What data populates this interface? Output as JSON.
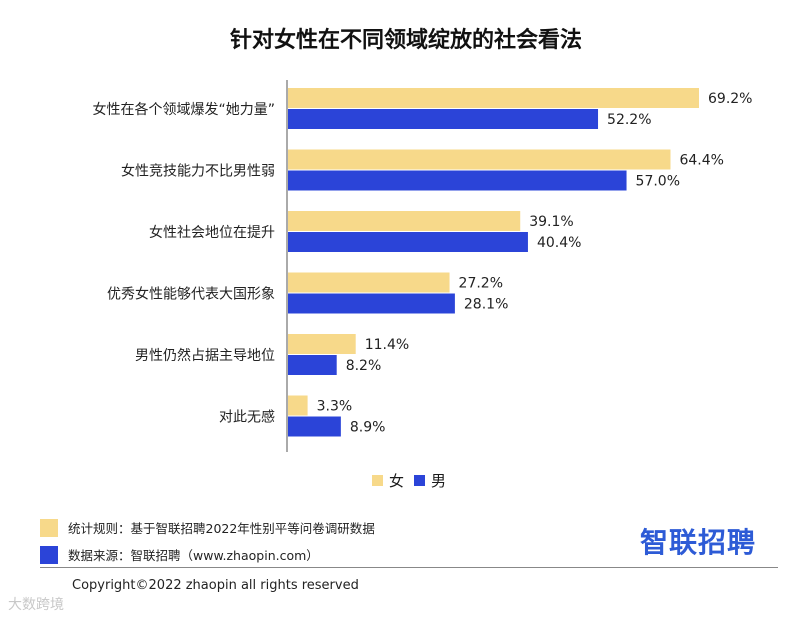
{
  "title": "针对女性在不同领域绽放的社会看法",
  "chart_data": {
    "type": "bar",
    "orientation": "horizontal",
    "categories": [
      "女性在各个领域爆发“她力量”",
      "女性竞技能力不比男性弱",
      "女性社会地位在提升",
      "优秀女性能够代表大国形象",
      "男性仍然占据主导地位",
      "对此无感"
    ],
    "series": [
      {
        "name": "女",
        "values": [
          69.2,
          64.4,
          39.1,
          27.2,
          11.4,
          3.3
        ],
        "color": "#f7d98a"
      },
      {
        "name": "男",
        "values": [
          52.2,
          57.0,
          40.4,
          28.1,
          8.2,
          8.9
        ],
        "color": "#2b44d8"
      }
    ],
    "value_labels": [
      [
        "69.2%",
        "64.4%",
        "39.1%",
        "27.2%",
        "11.4%",
        "3.3%"
      ],
      [
        "52.2%",
        "57.0%",
        "40.4%",
        "28.1%",
        "8.2%",
        "8.9%"
      ]
    ],
    "xlim": [
      0,
      72
    ],
    "legend_position": "bottom-center",
    "grid": false
  },
  "legend": {
    "female": "女",
    "male": "男"
  },
  "notes": {
    "rule": "统计规则：基于智联招聘2022年性别平等问卷调研数据",
    "source": "数据来源：智联招聘（www.zhaopin.com）"
  },
  "brand": "智联招聘",
  "copyright": "Copyright©2022 zhaopin all rights reserved",
  "watermark": "大数跨境",
  "colors": {
    "female": "#f7d98a",
    "male": "#2b44d8",
    "brand": "#2d5bd6"
  }
}
